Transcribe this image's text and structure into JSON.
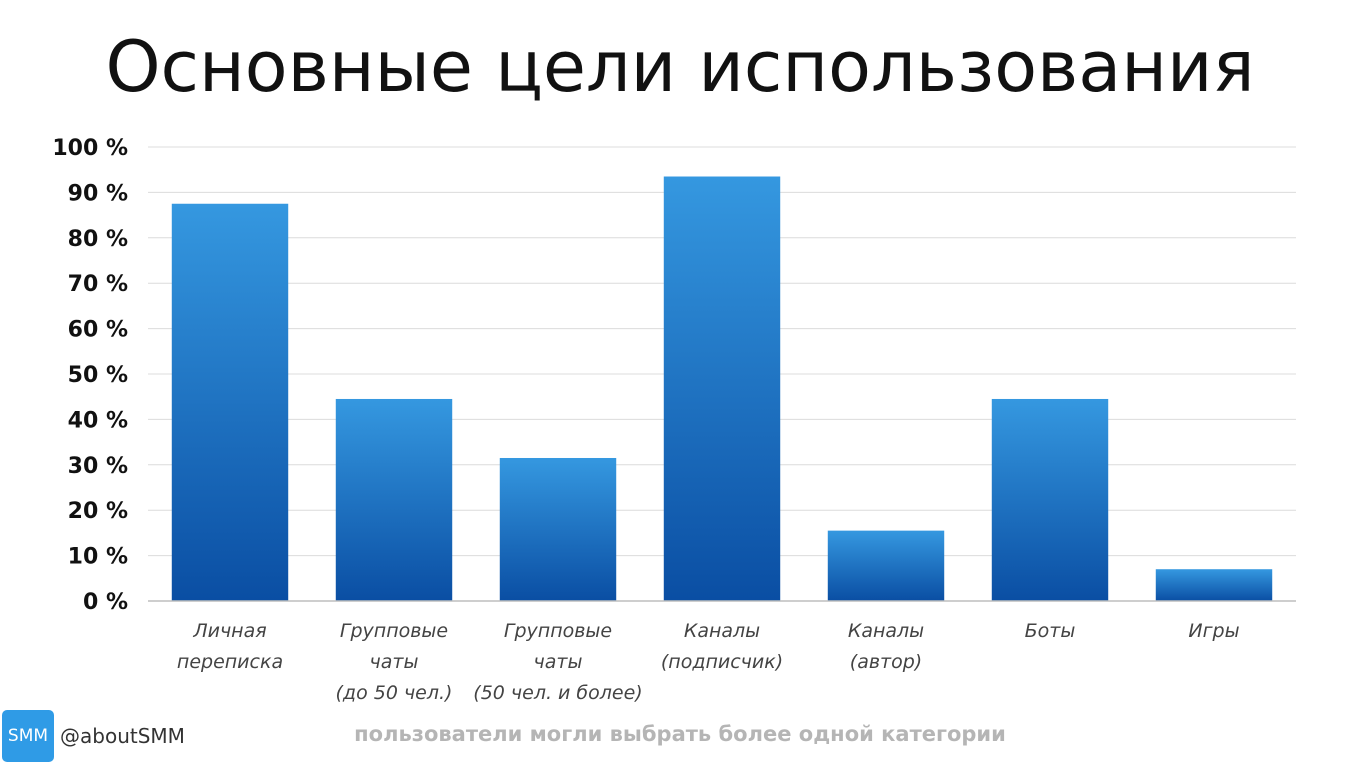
{
  "chart_data": {
    "type": "bar",
    "title": "Основные цели использования",
    "categories": [
      [
        "Личная",
        "переписка"
      ],
      [
        "Групповые",
        "чаты",
        "(до 50 чел.)"
      ],
      [
        "Групповые",
        "чаты",
        "(50 чел. и более)"
      ],
      [
        "Каналы",
        "(подписчик)"
      ],
      [
        "Каналы",
        "(автор)"
      ],
      [
        "Боты"
      ],
      [
        "Игры"
      ]
    ],
    "values": [
      87.5,
      44.5,
      31.5,
      93.5,
      15.5,
      44.5,
      7
    ],
    "ylim": [
      0,
      100
    ],
    "yticks": [
      0,
      10,
      20,
      30,
      40,
      50,
      60,
      70,
      80,
      90,
      100
    ],
    "ytick_labels": [
      "0 %",
      "10 %",
      "20 %",
      "30 %",
      "40 %",
      "50 %",
      "60 %",
      "70 %",
      "80 %",
      "90 %",
      "100 %"
    ],
    "xlabel": "",
    "ylabel": "",
    "grid": true,
    "legend": "none",
    "bar_color_top": "#3598e0",
    "bar_color_bottom": "#0a4ea3"
  },
  "footer": {
    "note": "пользователи могли выбрать более одной категории",
    "brand_logo_text": "SMM",
    "brand_handle": "@aboutSMM"
  }
}
